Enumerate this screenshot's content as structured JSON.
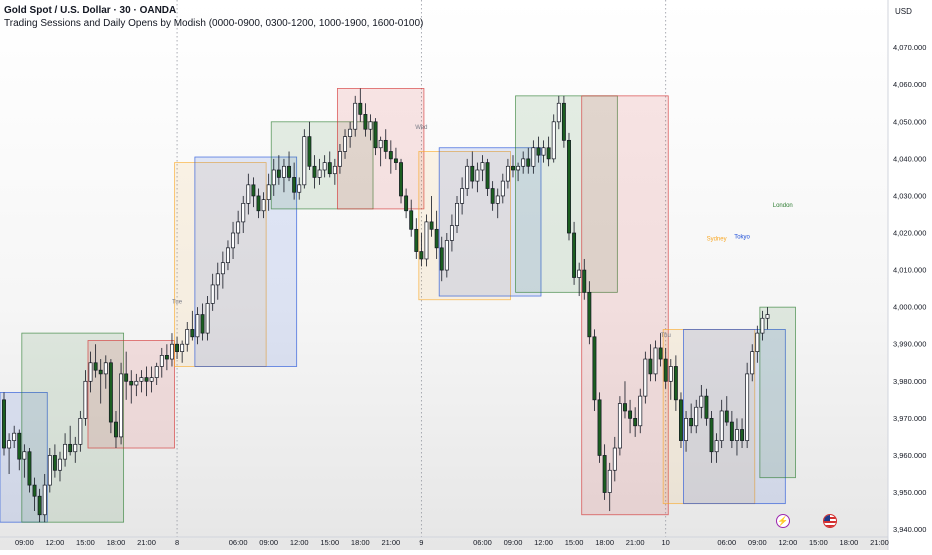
{
  "header": {
    "title": "Gold Spot / U.S. Dollar · 30 · OANDA",
    "subtitle": "Trading Sessions and Daily Opens by Modish (0000-0900, 0300-1200, 1000-1900, 1600-0100)",
    "currency": "USD"
  },
  "badges": {
    "flash_icon": "lightning-icon",
    "flag_icon": "us-flag-icon"
  },
  "colors": {
    "up": "#ffffff",
    "down": "#1b5e20",
    "wick": "#131722",
    "sydney": "#f9a825",
    "tokyo": "#1e4fd8",
    "london": "#2e7d32",
    "newyork": "#d32f2f"
  },
  "chart_data": {
    "type": "candlestick",
    "instrument": "Gold Spot / U.S. Dollar",
    "interval": "30",
    "y_axis": {
      "ylim": [
        3938,
        4078
      ],
      "ticks": [
        "4,070.000",
        "4,060.000",
        "4,050.000",
        "4,040.000",
        "4,030.000",
        "4,020.000",
        "4,010.000",
        "4,000.000",
        "3,990.000",
        "3,980.000",
        "3,970.000",
        "3,960.000",
        "3,950.000",
        "3,940.000"
      ],
      "tick_values": [
        4070,
        4060,
        4050,
        4040,
        4030,
        4020,
        4010,
        4000,
        3990,
        3980,
        3970,
        3960,
        3950,
        3940
      ]
    },
    "x_axis": {
      "labels": [
        {
          "text": "09:00",
          "bar": 4
        },
        {
          "text": "12:00",
          "bar": 10
        },
        {
          "text": "15:00",
          "bar": 16
        },
        {
          "text": "18:00",
          "bar": 22
        },
        {
          "text": "21:00",
          "bar": 28
        },
        {
          "text": "8",
          "bar": 34
        },
        {
          "text": "06:00",
          "bar": 46
        },
        {
          "text": "09:00",
          "bar": 52
        },
        {
          "text": "12:00",
          "bar": 58
        },
        {
          "text": "15:00",
          "bar": 64
        },
        {
          "text": "18:00",
          "bar": 70
        },
        {
          "text": "21:00",
          "bar": 76
        },
        {
          "text": "9",
          "bar": 82
        },
        {
          "text": "06:00",
          "bar": 94
        },
        {
          "text": "09:00",
          "bar": 100
        },
        {
          "text": "12:00",
          "bar": 106
        },
        {
          "text": "15:00",
          "bar": 112
        },
        {
          "text": "18:00",
          "bar": 118
        },
        {
          "text": "21:00",
          "bar": 124
        },
        {
          "text": "10",
          "bar": 130
        },
        {
          "text": "06:00",
          "bar": 142
        },
        {
          "text": "09:00",
          "bar": 148
        },
        {
          "text": "12:00",
          "bar": 154
        },
        {
          "text": "15:00",
          "bar": 160
        },
        {
          "text": "18:00",
          "bar": 166
        },
        {
          "text": "21:00",
          "bar": 172
        }
      ]
    },
    "day_separators": [
      34,
      82,
      130
    ],
    "day_labels": [
      {
        "text": "Tue",
        "bar": 34,
        "price": 4001
      },
      {
        "text": "Wed",
        "bar": 82,
        "price": 4048
      },
      {
        "text": "Thu",
        "bar": 130,
        "price": 3992
      }
    ],
    "session_labels": [
      {
        "text": "Sydney",
        "bar": 140,
        "price": 4018,
        "session": "sydney"
      },
      {
        "text": "Tokyo",
        "bar": 145,
        "price": 4018.5,
        "session": "tokyo"
      },
      {
        "text": "London",
        "bar": 153,
        "price": 4027,
        "session": "london"
      }
    ],
    "sessions": [
      {
        "session": "tokyo",
        "start": -1,
        "end": 8,
        "high": 3977,
        "low": 3942
      },
      {
        "session": "london",
        "start": 4,
        "end": 23,
        "high": 3993,
        "low": 3942
      },
      {
        "session": "newyork",
        "start": 17,
        "end": 33,
        "high": 3991,
        "low": 3962
      },
      {
        "session": "sydney",
        "start": 34,
        "end": 51,
        "high": 4039,
        "low": 3984
      },
      {
        "session": "tokyo",
        "start": 38,
        "end": 57,
        "high": 4040.5,
        "low": 3984
      },
      {
        "session": "london",
        "start": 53,
        "end": 72,
        "high": 4050,
        "low": 4026.5
      },
      {
        "session": "newyork",
        "start": 66,
        "end": 82,
        "high": 4059,
        "low": 4026.5
      },
      {
        "session": "sydney",
        "start": 82,
        "end": 99,
        "high": 4042,
        "low": 4002
      },
      {
        "session": "tokyo",
        "start": 86,
        "end": 105,
        "high": 4043,
        "low": 4003
      },
      {
        "session": "london",
        "start": 101,
        "end": 120,
        "high": 4057,
        "low": 4004
      },
      {
        "session": "newyork",
        "start": 114,
        "end": 130,
        "high": 4057,
        "low": 3944
      },
      {
        "session": "sydney",
        "start": 130,
        "end": 147,
        "high": 3994,
        "low": 3947
      },
      {
        "session": "tokyo",
        "start": 134,
        "end": 153,
        "high": 3994,
        "low": 3947
      },
      {
        "session": "london",
        "start": 149,
        "end": 155,
        "high": 4000,
        "low": 3954
      }
    ],
    "ohlc": [
      [
        3975,
        3977,
        3960,
        3962
      ],
      [
        3962,
        3966,
        3955,
        3964
      ],
      [
        3964,
        3968,
        3962,
        3966
      ],
      [
        3966,
        3967,
        3956,
        3959
      ],
      [
        3959,
        3963,
        3954,
        3961
      ],
      [
        3961,
        3962,
        3950,
        3952
      ],
      [
        3952,
        3954,
        3945,
        3949
      ],
      [
        3949,
        3951,
        3942,
        3944
      ],
      [
        3944,
        3955,
        3942,
        3952
      ],
      [
        3952,
        3962,
        3950,
        3960
      ],
      [
        3960,
        3963,
        3954,
        3956
      ],
      [
        3956,
        3961,
        3953,
        3959
      ],
      [
        3959,
        3966,
        3957,
        3963
      ],
      [
        3963,
        3968,
        3960,
        3961
      ],
      [
        3961,
        3965,
        3958,
        3963
      ],
      [
        3963,
        3972,
        3961,
        3970
      ],
      [
        3970,
        3983,
        3968,
        3980
      ],
      [
        3980,
        3988,
        3977,
        3985
      ],
      [
        3985,
        3990,
        3981,
        3983
      ],
      [
        3983,
        3986,
        3974,
        3982
      ],
      [
        3982,
        3987,
        3978,
        3985
      ],
      [
        3985,
        3986,
        3966,
        3969
      ],
      [
        3969,
        3972,
        3962,
        3965
      ],
      [
        3965,
        3985,
        3963,
        3982
      ],
      [
        3982,
        3988,
        3975,
        3980
      ],
      [
        3980,
        3983,
        3974,
        3979
      ],
      [
        3979,
        3982,
        3976,
        3980
      ],
      [
        3980,
        3983,
        3977,
        3981
      ],
      [
        3981,
        3984,
        3976,
        3980
      ],
      [
        3980,
        3984,
        3977,
        3981
      ],
      [
        3981,
        3985,
        3979,
        3984
      ],
      [
        3984,
        3989,
        3981,
        3987
      ],
      [
        3987,
        3990,
        3983,
        3986
      ],
      [
        3986,
        3993,
        3984,
        3990
      ],
      [
        3990,
        3992,
        3986,
        3988
      ],
      [
        3988,
        3991,
        3985,
        3990
      ],
      [
        3990,
        3996,
        3988,
        3994
      ],
      [
        3994,
        3999,
        3991,
        3992
      ],
      [
        3992,
        4000,
        3990,
        3998
      ],
      [
        3998,
        4001,
        3991,
        3993
      ],
      [
        3993,
        4003,
        3991,
        4001
      ],
      [
        4001,
        4009,
        3999,
        4006
      ],
      [
        4006,
        4012,
        4002,
        4009
      ],
      [
        4009,
        4015,
        4005,
        4012
      ],
      [
        4012,
        4018,
        4010,
        4016
      ],
      [
        4016,
        4023,
        4013,
        4020
      ],
      [
        4020,
        4026,
        4017,
        4023
      ],
      [
        4023,
        4030,
        4020,
        4028
      ],
      [
        4028,
        4036,
        4025,
        4033
      ],
      [
        4033,
        4035,
        4027,
        4030
      ],
      [
        4030,
        4032,
        4024,
        4026
      ],
      [
        4026,
        4031,
        4024,
        4029
      ],
      [
        4029,
        4036,
        4026,
        4033
      ],
      [
        4033,
        4040,
        4030,
        4037
      ],
      [
        4037,
        4041,
        4033,
        4035
      ],
      [
        4035,
        4040,
        4031,
        4038
      ],
      [
        4038,
        4042,
        4034,
        4035
      ],
      [
        4035,
        4039,
        4029,
        4031
      ],
      [
        4031,
        4035,
        4029,
        4033
      ],
      [
        4033,
        4048,
        4032,
        4046
      ],
      [
        4046,
        4050,
        4037,
        4038
      ],
      [
        4038,
        4041,
        4032,
        4035
      ],
      [
        4035,
        4040,
        4033,
        4037
      ],
      [
        4037,
        4041,
        4035,
        4039
      ],
      [
        4039,
        4042,
        4035,
        4036
      ],
      [
        4036,
        4040,
        4033,
        4038
      ],
      [
        4038,
        4044,
        4036,
        4042
      ],
      [
        4042,
        4048,
        4040,
        4046
      ],
      [
        4046,
        4050,
        4043,
        4048
      ],
      [
        4048,
        4057,
        4046,
        4055
      ],
      [
        4055,
        4059,
        4050,
        4052
      ],
      [
        4052,
        4055,
        4046,
        4048
      ],
      [
        4048,
        4052,
        4045,
        4050
      ],
      [
        4050,
        4051,
        4041,
        4043
      ],
      [
        4043,
        4046,
        4038,
        4045
      ],
      [
        4045,
        4048,
        4040,
        4042
      ],
      [
        4042,
        4045,
        4036,
        4040
      ],
      [
        4040,
        4043,
        4037,
        4039
      ],
      [
        4039,
        4040,
        4028,
        4030
      ],
      [
        4030,
        4032,
        4024,
        4026
      ],
      [
        4026,
        4029,
        4019,
        4021
      ],
      [
        4021,
        4024,
        4013,
        4015
      ],
      [
        4015,
        4020,
        4011,
        4013
      ],
      [
        4013,
        4025,
        4011,
        4023
      ],
      [
        4023,
        4030,
        4019,
        4021
      ],
      [
        4021,
        4026,
        4013,
        4016
      ],
      [
        4016,
        4019,
        4007,
        4010
      ],
      [
        4010,
        4020,
        4008,
        4018
      ],
      [
        4018,
        4025,
        4015,
        4022
      ],
      [
        4022,
        4030,
        4020,
        4028
      ],
      [
        4028,
        4035,
        4025,
        4032
      ],
      [
        4032,
        4040,
        4030,
        4038
      ],
      [
        4038,
        4042,
        4032,
        4034
      ],
      [
        4034,
        4039,
        4031,
        4037
      ],
      [
        4037,
        4041,
        4034,
        4039
      ],
      [
        4039,
        4040,
        4030,
        4032
      ],
      [
        4032,
        4034,
        4026,
        4028
      ],
      [
        4028,
        4032,
        4024,
        4030
      ],
      [
        4030,
        4036,
        4028,
        4034
      ],
      [
        4034,
        4040,
        4032,
        4038
      ],
      [
        4038,
        4041,
        4035,
        4037
      ],
      [
        4037,
        4039,
        4034,
        4038
      ],
      [
        4038,
        4042,
        4036,
        4040
      ],
      [
        4040,
        4043,
        4036,
        4038
      ],
      [
        4038,
        4045,
        4036,
        4043
      ],
      [
        4043,
        4046,
        4039,
        4041
      ],
      [
        4041,
        4045,
        4039,
        4043
      ],
      [
        4043,
        4046,
        4038,
        4040
      ],
      [
        4040,
        4052,
        4039,
        4050
      ],
      [
        4050,
        4057,
        4048,
        4055
      ],
      [
        4055,
        4057,
        4043,
        4045
      ],
      [
        4045,
        4047,
        4018,
        4020
      ],
      [
        4020,
        4023,
        4006,
        4008
      ],
      [
        4008,
        4012,
        4003,
        4010
      ],
      [
        4010,
        4013,
        4002,
        4004
      ],
      [
        4004,
        4007,
        3990,
        3992
      ],
      [
        3992,
        3994,
        3972,
        3975
      ],
      [
        3975,
        3977,
        3958,
        3960
      ],
      [
        3960,
        3963,
        3948,
        3950
      ],
      [
        3950,
        3958,
        3945,
        3956
      ],
      [
        3956,
        3965,
        3953,
        3962
      ],
      [
        3962,
        3976,
        3960,
        3974
      ],
      [
        3974,
        3980,
        3970,
        3972
      ],
      [
        3972,
        3975,
        3966,
        3970
      ],
      [
        3970,
        3973,
        3965,
        3968
      ],
      [
        3968,
        3978,
        3966,
        3976
      ],
      [
        3976,
        3988,
        3974,
        3986
      ],
      [
        3986,
        3990,
        3980,
        3982
      ],
      [
        3982,
        3991,
        3980,
        3989
      ],
      [
        3989,
        3993,
        3984,
        3986
      ],
      [
        3986,
        3989,
        3978,
        3980
      ],
      [
        3980,
        3986,
        3975,
        3984
      ],
      [
        3984,
        3987,
        3972,
        3975
      ],
      [
        3975,
        3977,
        3962,
        3964
      ],
      [
        3964,
        3972,
        3961,
        3970
      ],
      [
        3970,
        3974,
        3966,
        3968
      ],
      [
        3968,
        3975,
        3966,
        3973
      ],
      [
        3973,
        3979,
        3970,
        3976
      ],
      [
        3976,
        3978,
        3968,
        3970
      ],
      [
        3970,
        3972,
        3958,
        3961
      ],
      [
        3961,
        3966,
        3958,
        3964
      ],
      [
        3964,
        3975,
        3962,
        3972
      ],
      [
        3972,
        3976,
        3968,
        3969
      ],
      [
        3969,
        3972,
        3962,
        3964
      ],
      [
        3964,
        3970,
        3960,
        3967
      ],
      [
        3967,
        3970,
        3962,
        3964
      ],
      [
        3964,
        3985,
        3962,
        3982
      ],
      [
        3982,
        3990,
        3980,
        3988
      ],
      [
        3988,
        3995,
        3985,
        3993
      ],
      [
        3993,
        3999,
        3991,
        3997
      ],
      [
        3997,
        4000,
        3994,
        3998
      ]
    ]
  }
}
